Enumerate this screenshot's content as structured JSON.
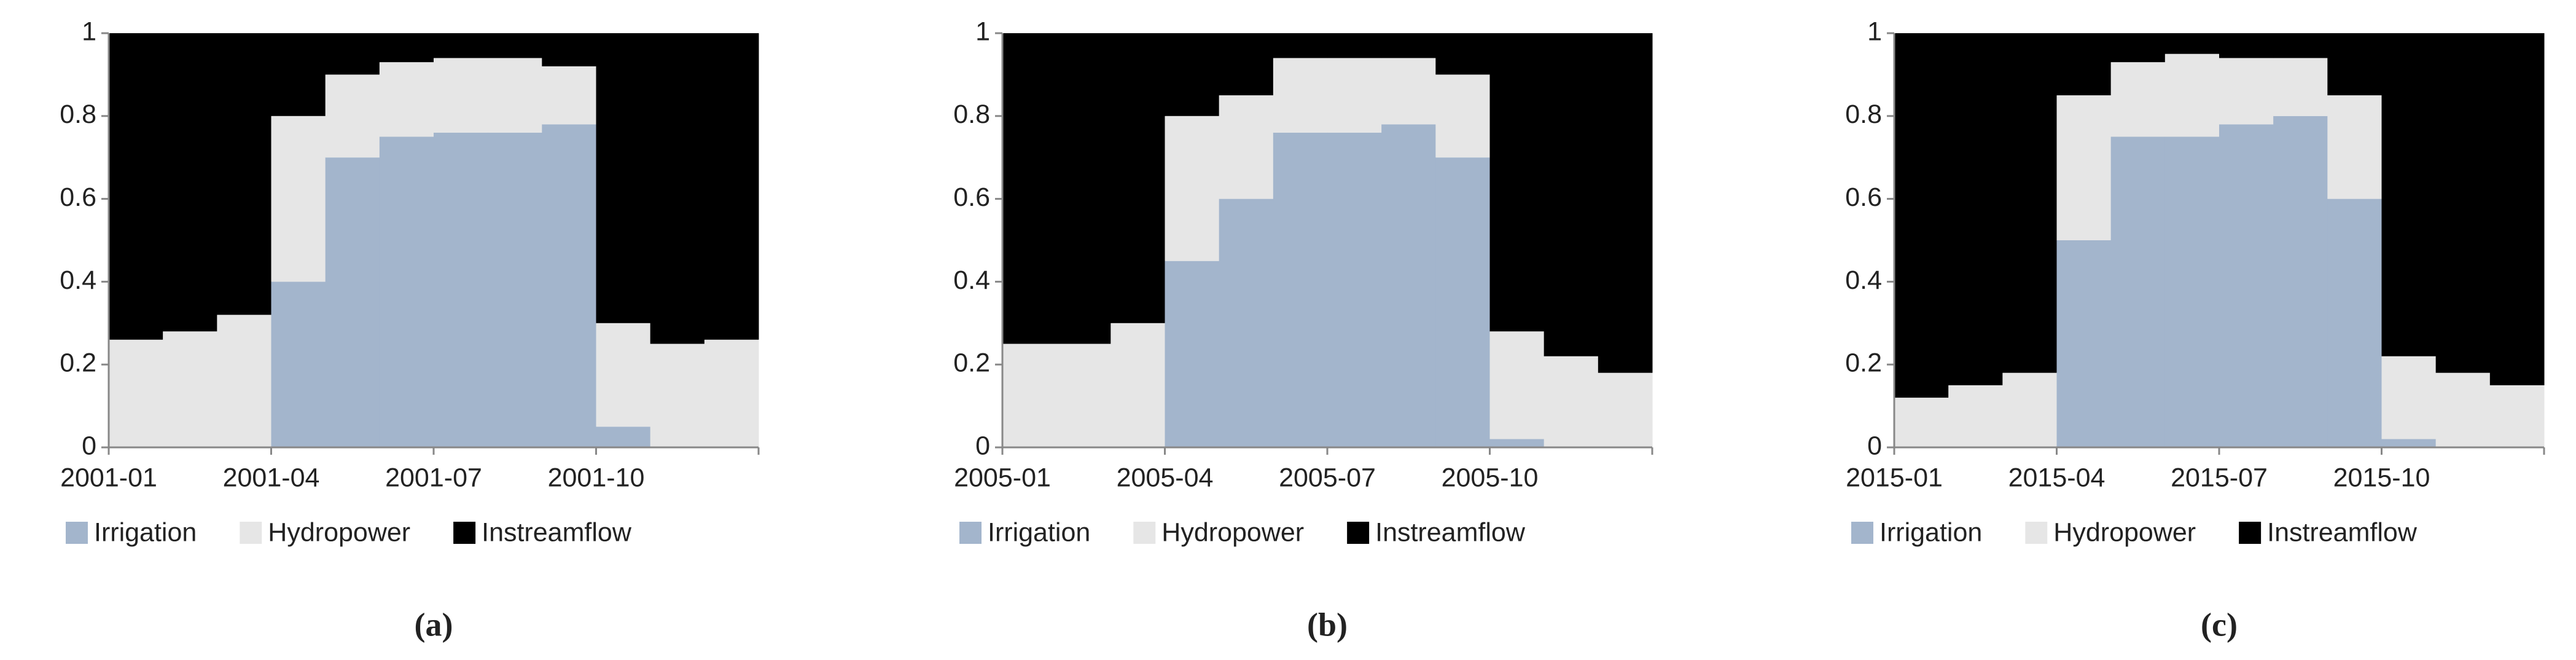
{
  "chart_data": [
    {
      "type": "stacked_area",
      "panel_label": "(a)",
      "categories": [
        "2001-01",
        "2001-02",
        "2001-03",
        "2001-04",
        "2001-05",
        "2001-06",
        "2001-07",
        "2001-08",
        "2001-09",
        "2001-10",
        "2001-11",
        "2001-12"
      ],
      "xticks": [
        "2001-01",
        "2001-04",
        "2001-07",
        "2001-10"
      ],
      "ylim": [
        0,
        1
      ],
      "yticks": [
        0,
        0.2,
        0.4,
        0.6,
        0.8,
        1
      ],
      "series": [
        {
          "name": "Irrigation",
          "color": "#a3b5cc",
          "values": [
            0,
            0,
            0,
            0.4,
            0.7,
            0.75,
            0.76,
            0.76,
            0.78,
            0.05,
            0,
            0
          ]
        },
        {
          "name": "Hydropower",
          "color": "#e6e6e6",
          "values": [
            0.26,
            0.28,
            0.32,
            0.4,
            0.2,
            0.18,
            0.18,
            0.18,
            0.14,
            0.25,
            0.25,
            0.26
          ]
        },
        {
          "name": "Instreamflow",
          "color": "#000000",
          "values": [
            0.74,
            0.72,
            0.68,
            0.2,
            0.1,
            0.07,
            0.06,
            0.06,
            0.08,
            0.7,
            0.75,
            0.74
          ]
        }
      ]
    },
    {
      "type": "stacked_area",
      "panel_label": "(b)",
      "categories": [
        "2005-01",
        "2005-02",
        "2005-03",
        "2005-04",
        "2005-05",
        "2005-06",
        "2005-07",
        "2005-08",
        "2005-09",
        "2005-10",
        "2005-11",
        "2005-12"
      ],
      "xticks": [
        "2005-01",
        "2005-04",
        "2005-07",
        "2005-10"
      ],
      "ylim": [
        0,
        1
      ],
      "yticks": [
        0,
        0.2,
        0.4,
        0.6,
        0.8,
        1
      ],
      "series": [
        {
          "name": "Irrigation",
          "color": "#a3b5cc",
          "values": [
            0,
            0,
            0,
            0.45,
            0.6,
            0.76,
            0.76,
            0.78,
            0.7,
            0.02,
            0,
            0
          ]
        },
        {
          "name": "Hydropower",
          "color": "#e6e6e6",
          "values": [
            0.25,
            0.25,
            0.3,
            0.35,
            0.25,
            0.18,
            0.18,
            0.16,
            0.2,
            0.26,
            0.22,
            0.18
          ]
        },
        {
          "name": "Instreamflow",
          "color": "#000000",
          "values": [
            0.75,
            0.75,
            0.7,
            0.2,
            0.15,
            0.06,
            0.06,
            0.06,
            0.1,
            0.72,
            0.78,
            0.82
          ]
        }
      ]
    },
    {
      "type": "stacked_area",
      "panel_label": "(c)",
      "categories": [
        "2015-01",
        "2015-02",
        "2015-03",
        "2015-04",
        "2015-05",
        "2015-06",
        "2015-07",
        "2015-08",
        "2015-09",
        "2015-10",
        "2015-11",
        "2015-12"
      ],
      "xticks": [
        "2015-01",
        "2015-04",
        "2015-07",
        "2015-10"
      ],
      "ylim": [
        0,
        1
      ],
      "yticks": [
        0,
        0.2,
        0.4,
        0.6,
        0.8,
        1
      ],
      "series": [
        {
          "name": "Irrigation",
          "color": "#a3b5cc",
          "values": [
            0,
            0,
            0,
            0.5,
            0.75,
            0.75,
            0.78,
            0.8,
            0.6,
            0.02,
            0,
            0
          ]
        },
        {
          "name": "Hydropower",
          "color": "#e6e6e6",
          "values": [
            0.12,
            0.15,
            0.18,
            0.35,
            0.18,
            0.2,
            0.16,
            0.14,
            0.25,
            0.2,
            0.18,
            0.15
          ]
        },
        {
          "name": "Instreamflow",
          "color": "#000000",
          "values": [
            0.88,
            0.85,
            0.82,
            0.15,
            0.07,
            0.05,
            0.06,
            0.06,
            0.15,
            0.78,
            0.82,
            0.85
          ]
        }
      ]
    }
  ]
}
